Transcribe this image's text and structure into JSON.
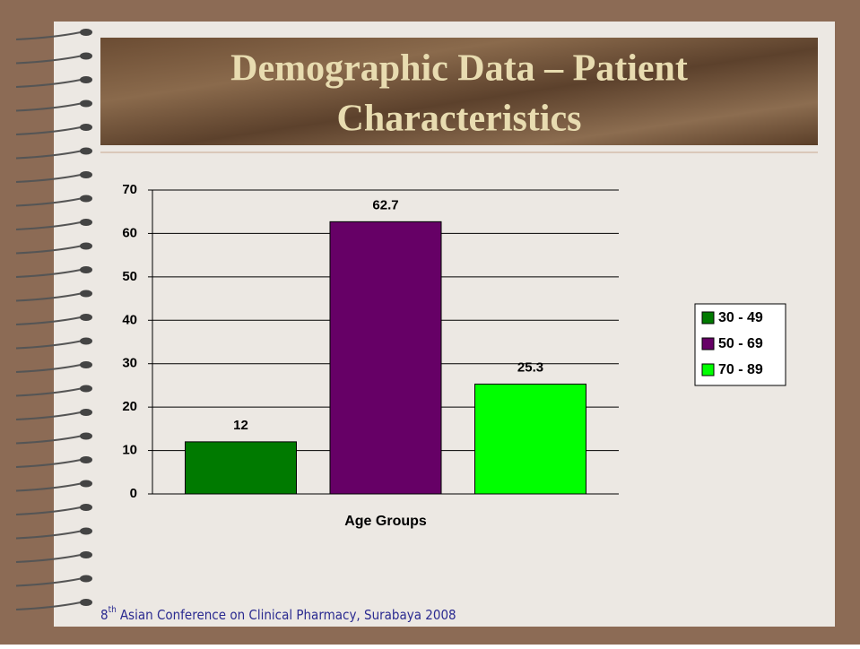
{
  "slide": {
    "title": [
      "Demographic Data – Patient",
      "Characteristics"
    ],
    "footer": {
      "number": "8",
      "superscript": "th",
      "text": "Asian Conference on Clinical Pharmacy, Surabaya 2008"
    }
  },
  "chart_data": {
    "type": "bar",
    "x_label": "Age Groups",
    "categories": [
      null
    ],
    "series": [
      {
        "name": "30 - 49",
        "color": "#007a00",
        "values": [
          12
        ]
      },
      {
        "name": "50 - 69",
        "color": "#660066",
        "values": [
          62.7
        ]
      },
      {
        "name": "70 - 89",
        "color": "#00ff00",
        "values": [
          25.3
        ]
      }
    ],
    "ylim": [
      0,
      70
    ],
    "yticks": [
      0,
      10,
      20,
      30,
      40,
      50,
      60,
      70
    ],
    "grid": true,
    "legend": "right"
  }
}
